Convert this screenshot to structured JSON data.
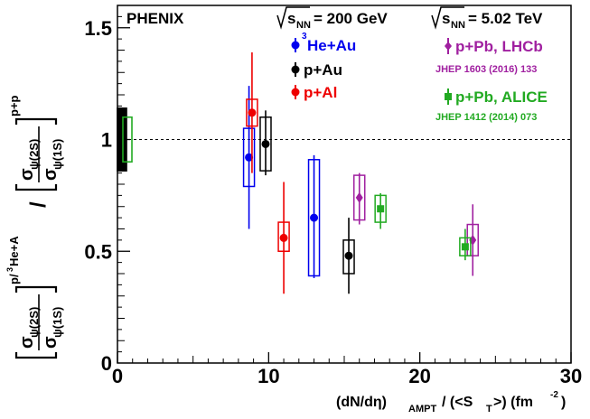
{
  "chart_data": {
    "type": "scatter",
    "experiment": "PHENIX",
    "energy_rhic": {
      "sqrt": "s",
      "sub": "NN",
      "value": "= 200 GeV"
    },
    "energy_lhc": {
      "sqrt": "s",
      "sub": "NN",
      "value": "= 5.02 TeV"
    },
    "xlim": [
      0,
      30
    ],
    "ylim": [
      0,
      1.6
    ],
    "x_ticks": [
      0,
      10,
      20,
      30
    ],
    "y_ticks": [
      0.5,
      1,
      1.5
    ],
    "x_tick_labels": [
      "0",
      "10",
      "20",
      "30"
    ],
    "y_tick_labels": [
      "0.5",
      "1",
      "1.5"
    ],
    "xlabel": {
      "pre": "(dN/dη)",
      "sub1": "AMPT",
      "mid": " / (<S",
      "sub2": "T",
      "post": ">)  (fm",
      "sup": "-2",
      "end": ")"
    },
    "ylabel": {
      "num": "σ",
      "num_sub": "ψ(2S)",
      "den": "σ",
      "den_sub": "ψ(1S)",
      "sup_left": "p/",
      "sup_left_3": "3",
      "sup_left_end": "He+A",
      "divider": "/",
      "sup_right": "p+p"
    },
    "reference_line": 1.0,
    "colors": {
      "he3au": "#0000ee",
      "pau": "#000000",
      "pal": "#ee0000",
      "lhcb": "#a020a0",
      "alice": "#22aa22"
    },
    "series": [
      {
        "name": "He+Au",
        "name_sup": "3",
        "color": "#0000ee",
        "marker": "circle",
        "points": [
          {
            "x": 8.7,
            "y": 0.92,
            "stat": [
              0.6,
              1.24
            ],
            "sys": [
              0.79,
              1.05
            ]
          },
          {
            "x": 13.0,
            "y": 0.65,
            "stat": [
              0.38,
              0.93
            ],
            "sys": [
              0.39,
              0.91
            ]
          }
        ]
      },
      {
        "name": "p+Au",
        "color": "#000000",
        "marker": "circle",
        "points": [
          {
            "x": 9.8,
            "y": 0.98,
            "stat": [
              0.84,
              1.13
            ],
            "sys": [
              0.86,
              1.1
            ]
          },
          {
            "x": 15.3,
            "y": 0.48,
            "stat": [
              0.31,
              0.65
            ],
            "sys": [
              0.4,
              0.55
            ]
          }
        ]
      },
      {
        "name": "p+Al",
        "color": "#ee0000",
        "marker": "circle",
        "points": [
          {
            "x": 8.9,
            "y": 1.12,
            "stat": [
              0.85,
              1.39
            ],
            "sys": [
              1.06,
              1.18
            ]
          },
          {
            "x": 11.0,
            "y": 0.56,
            "stat": [
              0.31,
              0.81
            ],
            "sys": [
              0.5,
              0.63
            ]
          }
        ]
      },
      {
        "name": "p+Pb, LHCb",
        "color": "#a020a0",
        "marker": "diamond",
        "ref": "JHEP 1603 (2016) 133",
        "points": [
          {
            "x": 16.0,
            "y": 0.74,
            "stat": [
              0.62,
              0.85
            ],
            "sys": [
              0.64,
              0.84
            ]
          },
          {
            "x": 23.5,
            "y": 0.55,
            "stat": [
              0.39,
              0.71
            ],
            "sys": [
              0.48,
              0.62
            ]
          }
        ]
      },
      {
        "name": "p+Pb, ALICE",
        "color": "#22aa22",
        "marker": "square",
        "ref": "JHEP 1412 (2014) 073",
        "points": [
          {
            "x": 17.4,
            "y": 0.69,
            "stat": [
              0.6,
              0.76
            ],
            "sys": [
              0.63,
              0.75
            ]
          },
          {
            "x": 23.0,
            "y": 0.52,
            "stat": [
              0.46,
              0.6
            ],
            "sys": [
              0.48,
              0.56
            ]
          }
        ]
      }
    ],
    "global_uncertainty_boxes": [
      {
        "color": "#000000",
        "filled": true,
        "y": [
          0.86,
          1.14
        ]
      },
      {
        "color": "#22aa22",
        "filled": false,
        "y": [
          0.9,
          1.1
        ]
      }
    ]
  }
}
